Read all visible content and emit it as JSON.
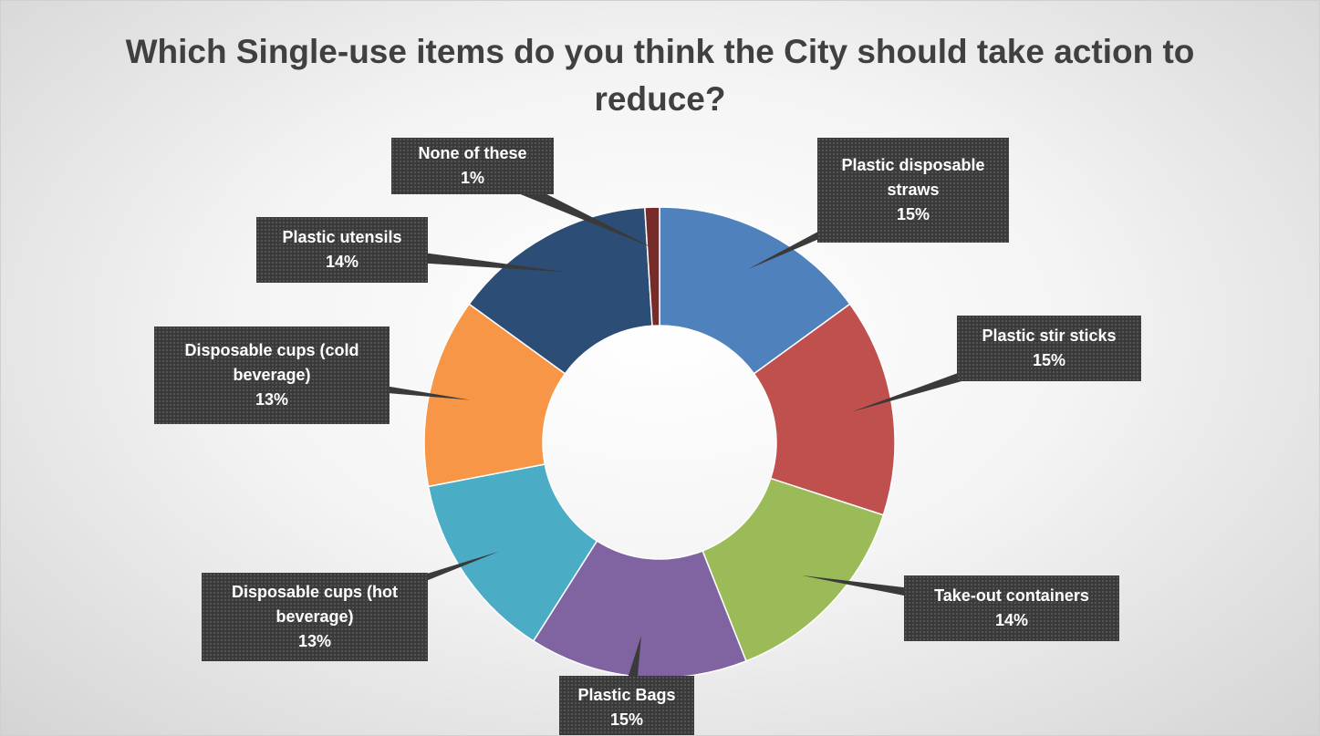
{
  "chart_data": {
    "type": "donut",
    "title": "Which Single-use items do you think the City should take action to reduce?",
    "categories": [
      "Plastic disposable straws",
      "Plastic stir sticks",
      "Take-out containers",
      "Plastic Bags",
      "Disposable cups (hot beverage)",
      "Disposable cups (cold beverage)",
      "Plastic utensils",
      "None of these"
    ],
    "values": [
      15,
      15,
      14,
      15,
      13,
      13,
      14,
      1
    ],
    "value_labels": [
      "15%",
      "15%",
      "14%",
      "15%",
      "13%",
      "13%",
      "14%",
      "1%"
    ],
    "colors": [
      "#4f81bd",
      "#c0504d",
      "#9bbb59",
      "#8064a2",
      "#4bacc6",
      "#f79646",
      "#2c4d75",
      "#772c2a"
    ]
  }
}
